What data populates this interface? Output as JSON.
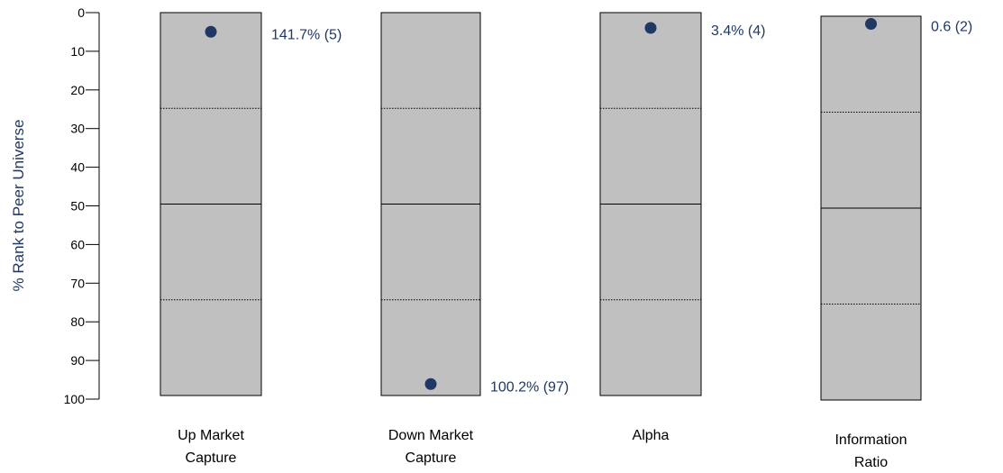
{
  "chart_data": {
    "type": "scatter",
    "ylabel": "% Rank to Peer Universe",
    "xlabel": "",
    "title": "",
    "ylim": [
      0,
      100
    ],
    "y_inverted": true,
    "yticks": [
      "0",
      "10",
      "20",
      "30",
      "40",
      "50",
      "60",
      "70",
      "80",
      "90",
      "100"
    ],
    "grid": false,
    "quartile_lines": [
      25,
      50,
      75
    ],
    "colors": {
      "box_fill": "#c0c0c0",
      "box_stroke": "#000000",
      "marker": "#1f3864",
      "value_label": "#1f3864",
      "axis_label": "#1f3864"
    },
    "categories": [
      {
        "label_lines": [
          "Up Market",
          "Capture"
        ],
        "rank": 5,
        "value_label": "141.7% (5)"
      },
      {
        "label_lines": [
          "Down Market",
          "Capture"
        ],
        "rank": 97,
        "value_label": "100.2% (97)"
      },
      {
        "label_lines": [
          "Alpha"
        ],
        "rank": 4,
        "value_label": "3.4% (4)"
      },
      {
        "label_lines": [
          "Information",
          "Ratio"
        ],
        "rank": 2,
        "value_label": "0.6 (2)"
      }
    ]
  }
}
